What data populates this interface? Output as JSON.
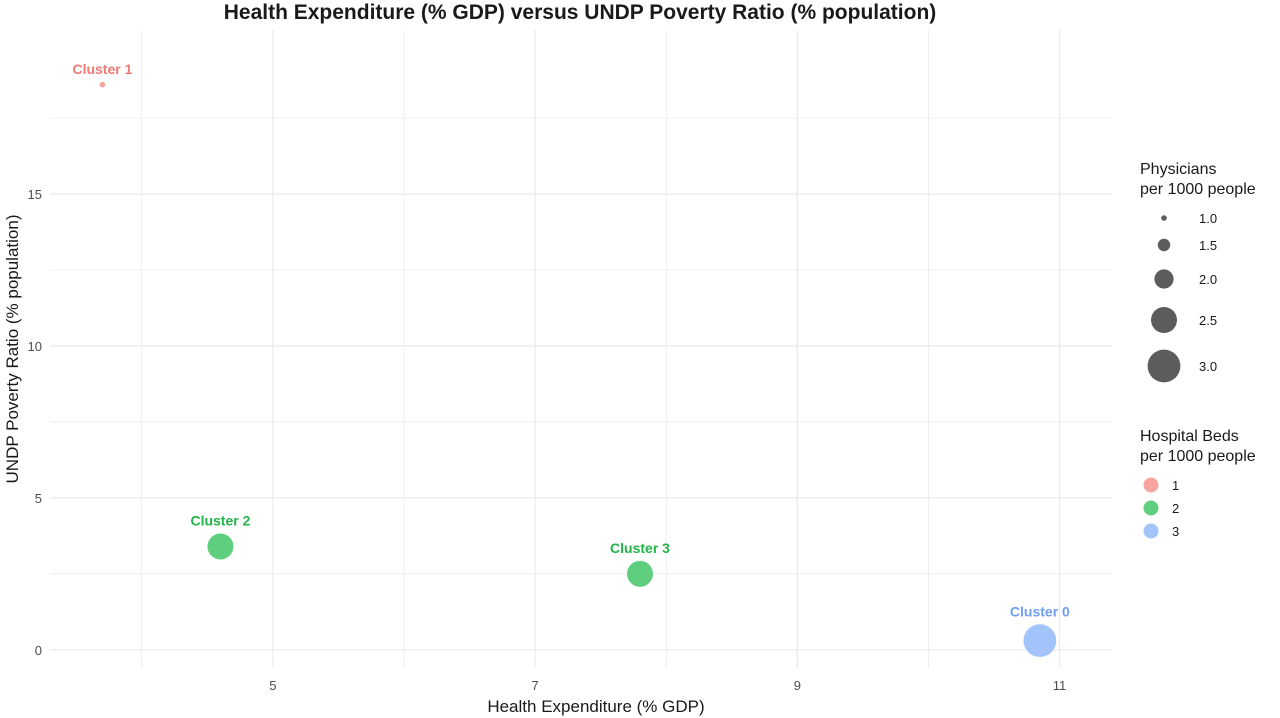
{
  "chart_data": {
    "type": "scatter",
    "title": "Health Expenditure (% GDP) versus UNDP Poverty Ratio (% population)",
    "xlabel": "Health Expenditure (% GDP)",
    "ylabel": "UNDP Poverty Ratio (% population)",
    "xlim": [
      3.3,
      11.4
    ],
    "ylim": [
      -0.6,
      20.4
    ],
    "x_ticks": [
      5,
      7,
      9,
      11
    ],
    "y_ticks": [
      0,
      5,
      10,
      15
    ],
    "grid": true,
    "points": [
      {
        "label": "Cluster 1",
        "x": 3.7,
        "y": 18.6,
        "size": 1.0,
        "color_group": 1
      },
      {
        "label": "Cluster 2",
        "x": 4.6,
        "y": 3.4,
        "size": 2.5,
        "color_group": 2
      },
      {
        "label": "Cluster 3",
        "x": 7.8,
        "y": 2.5,
        "size": 2.5,
        "color_group": 2
      },
      {
        "label": "Cluster 0",
        "x": 10.85,
        "y": 0.3,
        "size": 3.0,
        "color_group": 3
      }
    ],
    "size_legend": {
      "title_line1": "Physicians",
      "title_line2": "per 1000 people",
      "values": [
        "1.0",
        "1.5",
        "2.0",
        "2.5",
        "3.0"
      ]
    },
    "color_legend": {
      "title_line1": "Hospital Beds",
      "title_line2": "per 1000 people",
      "entries": [
        {
          "label": "1",
          "color": "#f8a5a0"
        },
        {
          "label": "2",
          "color": "#5fcf7f"
        },
        {
          "label": "3",
          "color": "#a3c3fb"
        }
      ]
    },
    "label_colors": {
      "1": "#f07a72",
      "2": "#22b34a",
      "3": "#6f9ef7"
    },
    "legend_placement": "right"
  }
}
